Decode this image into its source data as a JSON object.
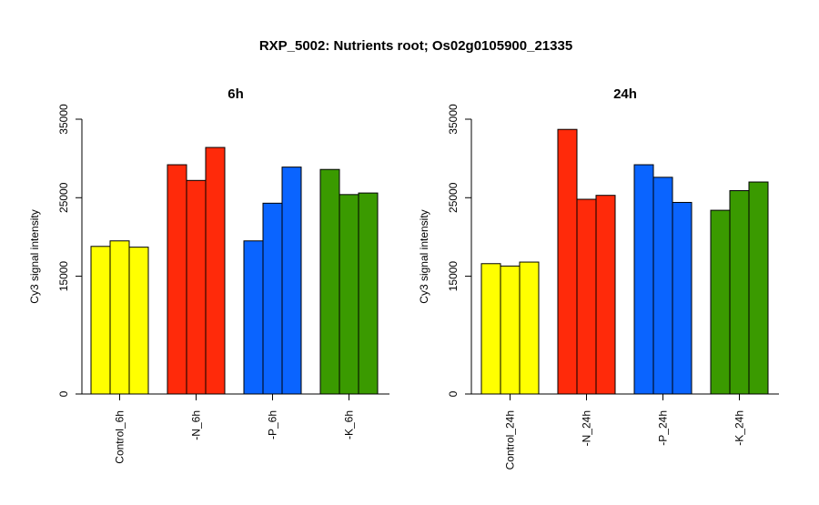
{
  "figure_title": "RXP_5002: Nutrients root; Os02g0105900_21335",
  "colors": {
    "control": "#ffff00",
    "N": "#ff2a0a",
    "P": "#0a64ff",
    "K": "#3a9a00"
  },
  "chart_data": [
    {
      "type": "bar",
      "title": "6h",
      "ylabel": "Cy3 signal intensity",
      "ylim": [
        0,
        35000
      ],
      "yticks": [
        0,
        15000,
        25000,
        35000
      ],
      "ytick_labels": [
        "0",
        "15000",
        "25000",
        "35000"
      ],
      "categories": [
        "Control_6h",
        "-N_6h",
        "-P_6h",
        "-K_6h"
      ],
      "series_colors": [
        "control",
        "N",
        "P",
        "K"
      ],
      "groups": [
        [
          18800,
          19500,
          18700
        ],
        [
          29200,
          27200,
          31400
        ],
        [
          19500,
          24300,
          28900
        ],
        [
          28600,
          25400,
          25600
        ]
      ]
    },
    {
      "type": "bar",
      "title": "24h",
      "ylabel": "Cy3 signal intensity",
      "ylim": [
        0,
        35000
      ],
      "yticks": [
        0,
        15000,
        25000,
        35000
      ],
      "ytick_labels": [
        "0",
        "15000",
        "25000",
        "35000"
      ],
      "categories": [
        "Control_24h",
        "-N_24h",
        "-P_24h",
        "-K_24h"
      ],
      "series_colors": [
        "control",
        "N",
        "P",
        "K"
      ],
      "groups": [
        [
          16600,
          16300,
          16800
        ],
        [
          33700,
          24800,
          25300
        ],
        [
          29200,
          27600,
          24400
        ],
        [
          23400,
          25900,
          27000
        ]
      ]
    }
  ]
}
